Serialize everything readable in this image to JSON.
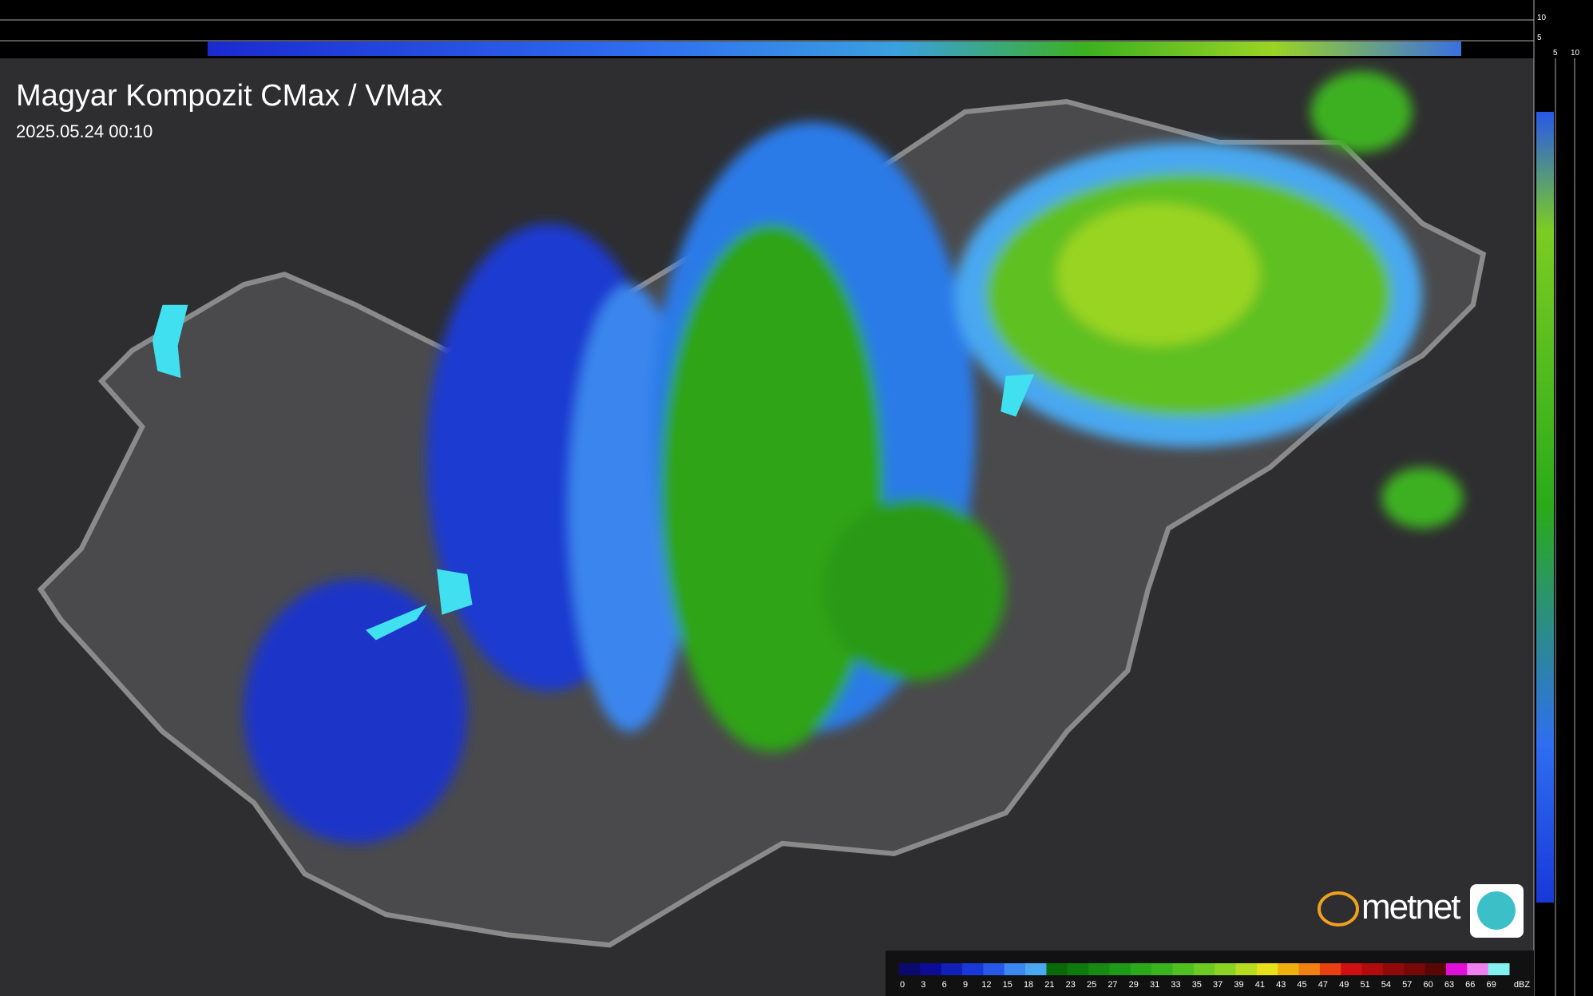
{
  "header": {
    "title": "Magyar Kompozit CMax / VMax",
    "timestamp": "2025.05.24 00:10"
  },
  "side_scale": {
    "top": [
      "10",
      "5"
    ],
    "bottom": [
      "5",
      "10"
    ]
  },
  "logo": {
    "text": "metnet"
  },
  "legend": {
    "unit": "dBZ",
    "labels": [
      0,
      3,
      6,
      9,
      12,
      15,
      18,
      21,
      23,
      25,
      27,
      29,
      31,
      33,
      35,
      37,
      39,
      41,
      43,
      45,
      47,
      49,
      51,
      54,
      57,
      60,
      63,
      66,
      69
    ],
    "colors": [
      "#0a0a6e",
      "#0c0c96",
      "#1020b8",
      "#1838d8",
      "#2858e8",
      "#3c88f0",
      "#4aa8f0",
      "#0a6a0a",
      "#0e7a0e",
      "#168a12",
      "#1e9a16",
      "#2aaa1a",
      "#3ab41e",
      "#50c020",
      "#6cca22",
      "#8cd424",
      "#b8dc20",
      "#e8e018",
      "#f0b010",
      "#f08010",
      "#e84010",
      "#d01010",
      "#b00c0c",
      "#900a0a",
      "#780808",
      "#580606",
      "#e010d8",
      "#f080f0",
      "#80f0f0"
    ]
  }
}
